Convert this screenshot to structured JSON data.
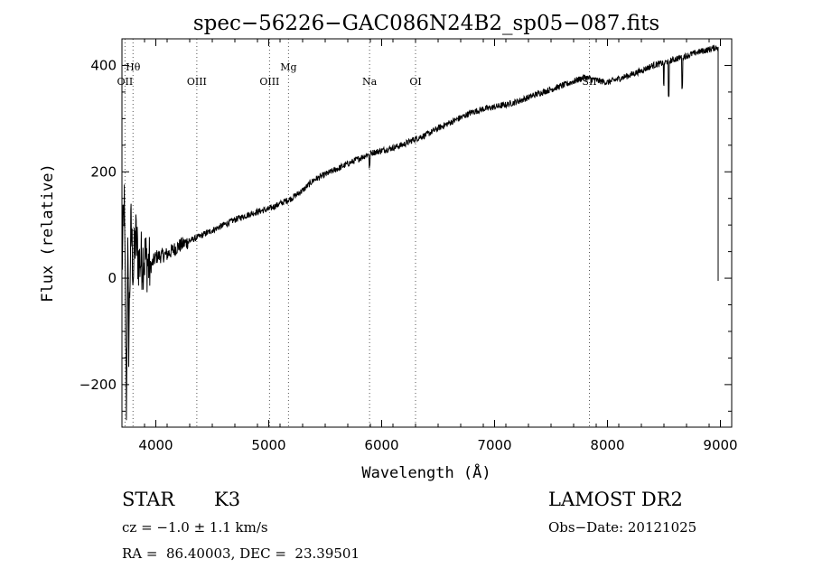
{
  "chart_data": {
    "type": "line",
    "title": "spec−56226−GAC086N24B2_sp05−087.fits",
    "xlabel": "Wavelength (Å)",
    "ylabel": "Flux (relative)",
    "xlim": [
      3700,
      9100
    ],
    "ylim": [
      -280,
      450
    ],
    "x_ticks": [
      4000,
      5000,
      6000,
      7000,
      8000,
      9000
    ],
    "x_tick_labels": [
      "4000",
      "5000",
      "6000",
      "7000",
      "8000",
      "9000"
    ],
    "y_ticks": [
      -200,
      0,
      200,
      400
    ],
    "y_tick_labels": [
      "−200",
      "0",
      "200",
      "400"
    ],
    "grid": false,
    "line_markers": [
      {
        "label": "OII",
        "x": 3727
      },
      {
        "label": "Hθ",
        "x": 3798
      },
      {
        "label": "OIII",
        "x": 4363
      },
      {
        "label": "OIII",
        "x": 5007
      },
      {
        "label": "Mg",
        "x": 5175
      },
      {
        "label": "Na",
        "x": 5893
      },
      {
        "label": "OI",
        "x": 6300
      },
      {
        "label": "SII",
        "x": 7840
      }
    ],
    "series": [
      {
        "color": "#000000",
        "x": [
          3700,
          3720,
          3740,
          3750,
          3760,
          3780,
          3800,
          3820,
          3850,
          3900,
          3950,
          4000,
          4100,
          4200,
          4300,
          4400,
          4500,
          4600,
          4700,
          4800,
          4900,
          5000,
          5100,
          5200,
          5300,
          5400,
          5500,
          5600,
          5700,
          5800,
          5900,
          6000,
          6100,
          6200,
          6300,
          6400,
          6500,
          6600,
          6700,
          6800,
          6900,
          7000,
          7100,
          7200,
          7300,
          7400,
          7500,
          7600,
          7700,
          7800,
          7900,
          8000,
          8100,
          8200,
          8300,
          8400,
          8500,
          8600,
          8700,
          8800,
          8900,
          8980
        ],
        "y": [
          20,
          150,
          -250,
          60,
          -120,
          100,
          10,
          80,
          30,
          40,
          20,
          40,
          45,
          60,
          70,
          80,
          90,
          100,
          110,
          118,
          125,
          130,
          140,
          150,
          165,
          185,
          195,
          205,
          215,
          225,
          235,
          240,
          245,
          252,
          262,
          270,
          282,
          292,
          302,
          312,
          318,
          322,
          326,
          332,
          340,
          348,
          355,
          362,
          370,
          378,
          372,
          368,
          375,
          382,
          390,
          400,
          405,
          412,
          418,
          425,
          430,
          435
        ]
      }
    ]
  },
  "info": {
    "object_class": "STAR",
    "subclass": "K3",
    "survey": "LAMOST DR2",
    "cz": "cz = −1.0 ± 1.1 km/s",
    "obs_date": "Obs−Date: 20121025",
    "coords": "RA =  86.40003, DEC =  23.39501"
  }
}
